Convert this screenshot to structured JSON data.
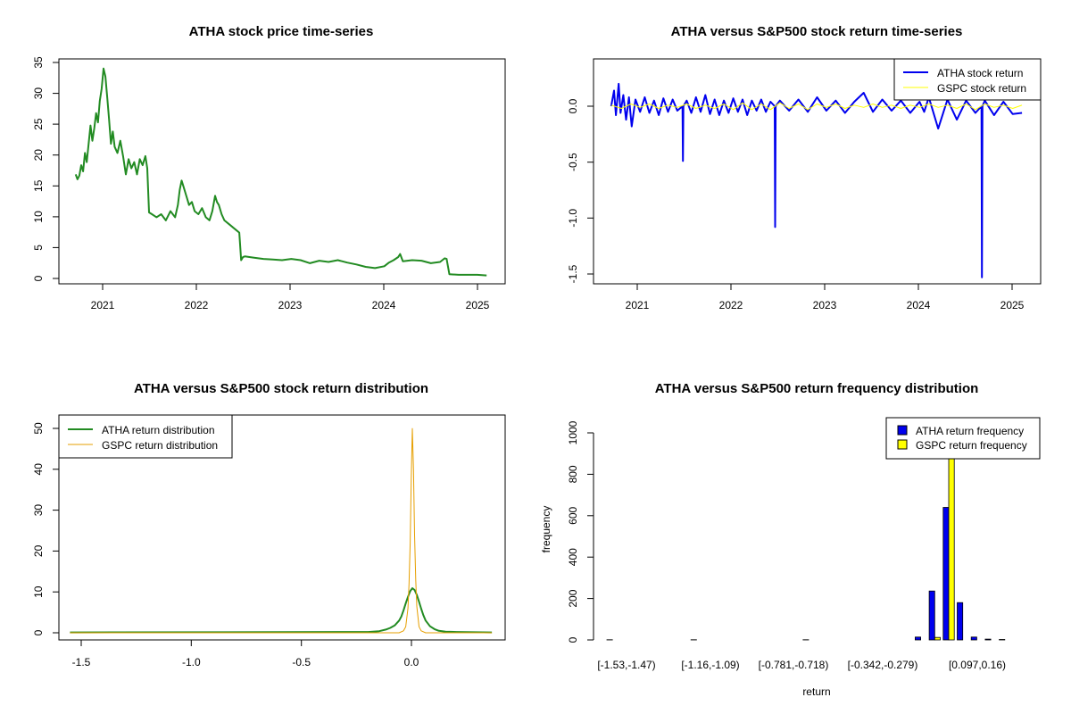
{
  "chart_data": [
    {
      "type": "line",
      "title": "ATHA stock price time-series",
      "xlabel": "",
      "ylabel": "",
      "x_ticks": [
        "2021",
        "2022",
        "2023",
        "2024",
        "2025"
      ],
      "y_ticks": [
        "0",
        "5",
        "10",
        "15",
        "20",
        "25",
        "30",
        "35"
      ],
      "xlim": [
        2020.5,
        2025.3
      ],
      "ylim": [
        -1,
        36
      ],
      "series": [
        {
          "color": "#228B22",
          "x": [
            2020.68,
            2020.7,
            2020.72,
            2020.74,
            2020.76,
            2020.78,
            2020.8,
            2020.82,
            2020.84,
            2020.86,
            2020.88,
            2020.9,
            2020.92,
            2020.94,
            2020.96,
            2020.98,
            2021.0,
            2021.02,
            2021.04,
            2021.06,
            2021.08,
            2021.1,
            2021.13,
            2021.16,
            2021.19,
            2021.22,
            2021.25,
            2021.28,
            2021.31,
            2021.34,
            2021.37,
            2021.4,
            2021.43,
            2021.45,
            2021.47,
            2021.5,
            2021.55,
            2021.6,
            2021.65,
            2021.7,
            2021.75,
            2021.78,
            2021.8,
            2021.82,
            2021.84,
            2021.86,
            2021.88,
            2021.9,
            2021.93,
            2021.96,
            2022.0,
            2022.04,
            2022.08,
            2022.12,
            2022.15,
            2022.18,
            2022.2,
            2022.22,
            2022.25,
            2022.28,
            2022.32,
            2022.36,
            2022.4,
            2022.44,
            2022.46,
            2022.48,
            2022.5,
            2022.6,
            2022.7,
            2022.8,
            2022.9,
            2023.0,
            2023.1,
            2023.2,
            2023.3,
            2023.4,
            2023.5,
            2023.6,
            2023.7,
            2023.8,
            2023.9,
            2024.0,
            2024.05,
            2024.1,
            2024.15,
            2024.17,
            2024.2,
            2024.3,
            2024.4,
            2024.5,
            2024.6,
            2024.65,
            2024.67,
            2024.7,
            2024.8,
            2024.9,
            2025.0,
            2025.1
          ],
          "y": [
            17.0,
            16.2,
            16.8,
            18.5,
            17.5,
            20.5,
            19.0,
            22.0,
            25.0,
            22.5,
            24.5,
            27.0,
            25.5,
            29.0,
            31.0,
            34.3,
            33.0,
            29.5,
            26.0,
            22.0,
            24.0,
            21.5,
            20.5,
            22.5,
            20.0,
            17.0,
            19.5,
            18.0,
            19.0,
            17.0,
            19.5,
            18.5,
            20.0,
            18.0,
            10.8,
            10.5,
            10.0,
            10.5,
            9.5,
            11.0,
            10.0,
            12.0,
            14.5,
            16.0,
            15.0,
            14.0,
            13.0,
            12.0,
            12.5,
            11.0,
            10.5,
            11.5,
            10.0,
            9.5,
            11.0,
            13.5,
            12.5,
            12.0,
            10.5,
            9.5,
            9.0,
            8.5,
            8.0,
            7.5,
            3.0,
            3.5,
            3.6,
            3.4,
            3.2,
            3.1,
            3.0,
            3.2,
            3.0,
            2.5,
            2.9,
            2.7,
            3.0,
            2.6,
            2.3,
            1.9,
            1.7,
            2.0,
            2.6,
            3.0,
            3.5,
            4.0,
            2.8,
            3.0,
            2.9,
            2.5,
            2.7,
            3.3,
            3.2,
            0.7,
            0.6,
            0.6,
            0.6,
            0.5
          ]
        }
      ]
    },
    {
      "type": "line",
      "title": "ATHA versus S&P500 stock return time-series",
      "xlabel": "",
      "ylabel": "",
      "x_ticks": [
        "2021",
        "2022",
        "2023",
        "2024",
        "2025"
      ],
      "y_ticks": [
        "-1.5",
        "-1.0",
        "-0.5",
        "0.0"
      ],
      "xlim": [
        2020.5,
        2025.3
      ],
      "ylim": [
        -1.6,
        0.43
      ],
      "legend_position": "top-right",
      "series": [
        {
          "name": "ATHA stock return",
          "color": "#0000EE",
          "x": [
            2020.69,
            2020.72,
            2020.74,
            2020.77,
            2020.79,
            2020.82,
            2020.85,
            2020.88,
            2020.91,
            2020.95,
            2021.0,
            2021.05,
            2021.1,
            2021.15,
            2021.2,
            2021.25,
            2021.3,
            2021.35,
            2021.4,
            2021.455,
            2021.46,
            2021.465,
            2021.5,
            2021.55,
            2021.6,
            2021.65,
            2021.7,
            2021.75,
            2021.8,
            2021.85,
            2021.9,
            2021.95,
            2022.0,
            2022.05,
            2022.1,
            2022.15,
            2022.2,
            2022.25,
            2022.3,
            2022.35,
            2022.4,
            2022.445,
            2022.45,
            2022.455,
            2022.5,
            2022.6,
            2022.7,
            2022.8,
            2022.9,
            2023.0,
            2023.1,
            2023.2,
            2023.3,
            2023.4,
            2023.5,
            2023.6,
            2023.7,
            2023.8,
            2023.9,
            2024.0,
            2024.05,
            2024.1,
            2024.2,
            2024.3,
            2024.4,
            2024.5,
            2024.6,
            2024.665,
            2024.67,
            2024.675,
            2024.7,
            2024.8,
            2024.9,
            2025.0,
            2025.1
          ],
          "y": [
            0.0,
            0.14,
            -0.08,
            0.2,
            -0.06,
            0.1,
            -0.12,
            0.08,
            -0.18,
            0.06,
            -0.05,
            0.08,
            -0.06,
            0.05,
            -0.08,
            0.07,
            -0.05,
            0.06,
            -0.04,
            0.0,
            -0.49,
            0.0,
            0.05,
            -0.06,
            0.08,
            -0.05,
            0.1,
            -0.07,
            0.06,
            -0.08,
            0.05,
            -0.06,
            0.07,
            -0.05,
            0.06,
            -0.08,
            0.05,
            -0.04,
            0.06,
            -0.05,
            0.04,
            0.0,
            -1.08,
            0.0,
            0.05,
            -0.04,
            0.06,
            -0.05,
            0.08,
            -0.04,
            0.05,
            -0.06,
            0.04,
            0.12,
            -0.05,
            0.06,
            -0.04,
            0.05,
            -0.06,
            0.04,
            -0.05,
            0.08,
            -0.2,
            0.06,
            -0.12,
            0.05,
            -0.06,
            0.0,
            -1.53,
            0.0,
            0.05,
            -0.08,
            0.04,
            -0.07,
            -0.06
          ]
        },
        {
          "name": "GSPC stock return",
          "color": "#FFFF00",
          "x": [
            2020.69,
            2020.8,
            2020.9,
            2021.0,
            2021.1,
            2021.2,
            2021.3,
            2021.4,
            2021.5,
            2021.6,
            2021.7,
            2021.8,
            2021.9,
            2022.0,
            2022.1,
            2022.2,
            2022.3,
            2022.4,
            2022.5,
            2022.6,
            2022.7,
            2022.8,
            2022.9,
            2023.0,
            2023.1,
            2023.2,
            2023.3,
            2023.4,
            2023.5,
            2023.6,
            2023.7,
            2023.8,
            2023.9,
            2024.0,
            2024.1,
            2024.2,
            2024.3,
            2024.4,
            2024.5,
            2024.6,
            2024.7,
            2024.8,
            2024.9,
            2025.0,
            2025.1
          ],
          "y": [
            0.01,
            -0.02,
            0.02,
            -0.01,
            0.02,
            -0.02,
            0.01,
            -0.01,
            0.02,
            -0.02,
            0.01,
            -0.02,
            0.02,
            -0.03,
            0.03,
            -0.03,
            0.02,
            -0.03,
            0.03,
            -0.02,
            0.02,
            -0.03,
            0.02,
            -0.01,
            0.02,
            -0.02,
            0.01,
            -0.01,
            0.02,
            -0.01,
            0.01,
            -0.02,
            0.01,
            -0.01,
            0.02,
            -0.01,
            0.01,
            -0.02,
            0.02,
            -0.03,
            0.02,
            -0.01,
            0.01,
            -0.02,
            0.01
          ]
        }
      ]
    },
    {
      "type": "line",
      "title": "ATHA versus S&P500 stock return distribution",
      "xlabel": "",
      "ylabel": "",
      "x_ticks": [
        "-1.5",
        "-1.0",
        "-0.5",
        "0.0"
      ],
      "y_ticks": [
        "0",
        "10",
        "20",
        "30",
        "40",
        "50"
      ],
      "xlim": [
        -1.6,
        0.42
      ],
      "ylim": [
        -2,
        54
      ],
      "legend_position": "top-left",
      "series": [
        {
          "name": "ATHA return distribution",
          "color": "#228B22",
          "x": [
            -1.55,
            -0.2,
            -0.15,
            -0.12,
            -0.1,
            -0.08,
            -0.06,
            -0.05,
            -0.04,
            -0.03,
            -0.02,
            -0.01,
            0.0,
            0.01,
            0.02,
            0.03,
            0.04,
            0.05,
            0.06,
            0.08,
            0.1,
            0.12,
            0.15,
            0.2,
            0.36
          ],
          "y": [
            0.1,
            0.2,
            0.4,
            0.8,
            1.2,
            1.8,
            3.0,
            4.0,
            5.5,
            7.2,
            8.8,
            10.2,
            10.9,
            10.5,
            9.3,
            7.6,
            5.9,
            4.3,
            3.0,
            1.6,
            0.9,
            0.5,
            0.3,
            0.2,
            0.1
          ]
        },
        {
          "name": "GSPC return distribution",
          "color": "#E69F00",
          "x": [
            -1.55,
            -0.06,
            -0.04,
            -0.03,
            -0.02,
            -0.015,
            -0.01,
            -0.005,
            0.0,
            0.005,
            0.01,
            0.015,
            0.02,
            0.03,
            0.04,
            0.06,
            0.36
          ],
          "y": [
            0.0,
            0.0,
            0.5,
            1.5,
            6.0,
            12.0,
            22.0,
            38.0,
            50.0,
            40.0,
            24.0,
            13.0,
            6.5,
            1.5,
            0.5,
            0.0,
            0.0
          ]
        }
      ]
    },
    {
      "type": "bar",
      "title": "ATHA versus S&P500 return frequency distribution",
      "xlabel": "return",
      "ylabel": "frequency",
      "x_tick_labels": [
        "[-1.53,-1.47)",
        "[-1.16,-1.09)",
        "[-0.781,-0.718)",
        "[-0.342,-0.279)",
        "[0.097,0.16)"
      ],
      "y_ticks": [
        "0",
        "200",
        "400",
        "600",
        "800",
        "1000"
      ],
      "ylim": [
        0,
        1080
      ],
      "legend_position": "top-right",
      "series": [
        {
          "name": "ATHA return frequency",
          "color": "#0000EE",
          "values": [
            1,
            0,
            0,
            0,
            0,
            0,
            1,
            0,
            0,
            0,
            0,
            0,
            0,
            0,
            1,
            0,
            0,
            0,
            0,
            0,
            0,
            0,
            14,
            236,
            640,
            180,
            14,
            4,
            2,
            0
          ]
        },
        {
          "name": "GSPC return frequency",
          "color": "#FFFF00",
          "values": [
            0,
            0,
            0,
            0,
            0,
            0,
            0,
            0,
            0,
            0,
            0,
            0,
            0,
            0,
            0,
            0,
            0,
            0,
            0,
            0,
            0,
            0,
            0,
            12,
            1048,
            0,
            0,
            0,
            0,
            0
          ]
        }
      ]
    }
  ]
}
